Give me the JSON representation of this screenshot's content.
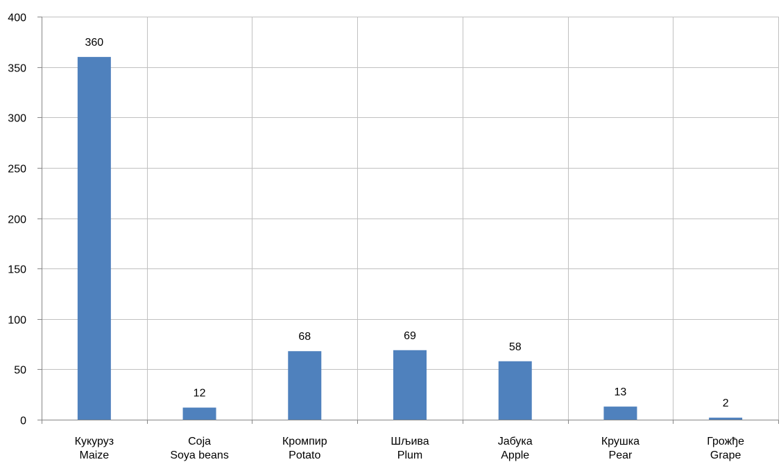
{
  "chart_data": {
    "type": "bar",
    "title": "",
    "xlabel": "",
    "ylabel": "",
    "categories": [
      {
        "primary": "Кукуруз",
        "secondary": "Maize"
      },
      {
        "primary": "Соја",
        "secondary": "Soya beans"
      },
      {
        "primary": "Кромпир",
        "secondary": "Potato"
      },
      {
        "primary": "Шљива",
        "secondary": "Plum"
      },
      {
        "primary": "Јабука",
        "secondary": "Apple"
      },
      {
        "primary": "Крушка",
        "secondary": "Pear"
      },
      {
        "primary": "Грожђе",
        "secondary": "Grape"
      }
    ],
    "values": [
      360,
      12,
      68,
      69,
      58,
      13,
      2
    ],
    "data_labels": [
      "360",
      "12",
      "68",
      "69",
      "58",
      "13",
      "2"
    ],
    "ylim": [
      0,
      400
    ],
    "yticks": [
      "0",
      "50",
      "100",
      "150",
      "200",
      "250",
      "300",
      "350",
      "400"
    ],
    "grid": true,
    "legend": "none",
    "colors": {
      "bar": "#4f81bd",
      "grid": "#c0c0c0",
      "axis": "#868686"
    }
  }
}
